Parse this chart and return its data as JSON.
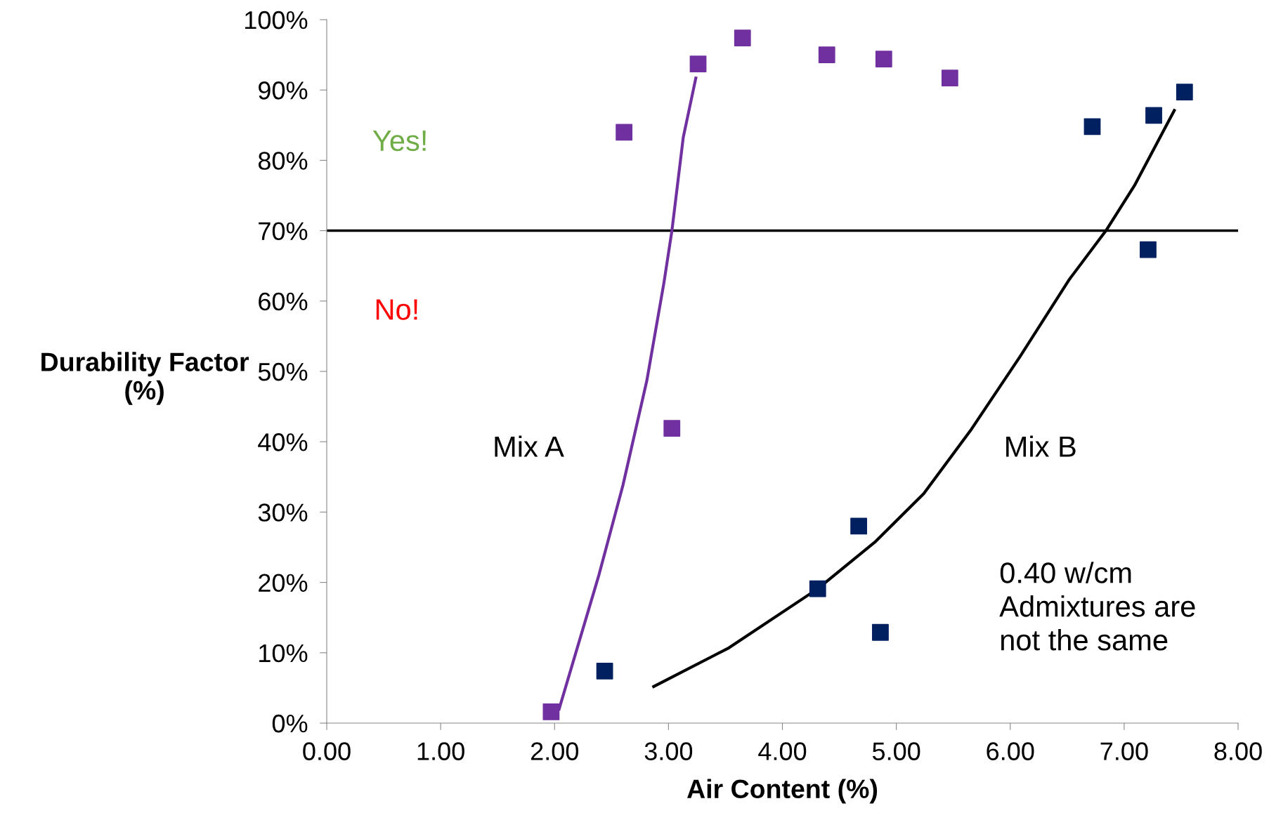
{
  "chart_data": {
    "type": "scatter",
    "xlabel": "Air Content (%)",
    "ylabel": "Durability Factor\n(%)",
    "marker": "square",
    "legend": false,
    "grid": false,
    "series": [
      {
        "color": "#7030a0",
        "x": [
          1.97,
          2.61,
          3.03,
          3.26,
          3.65,
          4.39,
          4.89,
          5.47
        ],
        "values": [
          1.6,
          84.0,
          41.9,
          93.7,
          97.4,
          95.0,
          94.4,
          91.7
        ]
      },
      {
        "color": "#002060",
        "x": [
          2.44,
          4.31,
          4.67,
          4.86,
          6.72,
          7.26,
          7.21,
          7.53
        ],
        "values": [
          7.4,
          19.1,
          28.0,
          12.9,
          84.8,
          86.4,
          67.3,
          89.7
        ]
      },
      {
        "type": "line",
        "marker": "none",
        "color": "#7030a0",
        "x": [
          2.04,
          2.39,
          2.6,
          2.81,
          2.96,
          3.03,
          3.13,
          3.24
        ],
        "values": [
          2.0,
          21.1,
          33.8,
          48.7,
          62.6,
          70.0,
          83.3,
          91.7
        ]
      },
      {
        "type": "line",
        "marker": "none",
        "color": "#000000",
        "x": [
          2.87,
          3.53,
          4.31,
          4.81,
          5.24,
          5.66,
          6.09,
          6.52,
          6.84,
          7.09,
          7.44
        ],
        "values": [
          5.2,
          10.7,
          19.1,
          25.7,
          32.6,
          41.8,
          52.2,
          63.1,
          70.0,
          76.4,
          87.1
        ]
      }
    ],
    "ref_lines": [
      {
        "axis": "y",
        "value": 70,
        "color": "#000000"
      }
    ],
    "annotations": [
      "Yes!",
      "No!",
      "Mix A",
      "Mix B",
      "0.40 w/cm\nAdmixtures are\nnot the same"
    ],
    "xlim": [
      0,
      8
    ],
    "ylim": [
      0,
      100
    ],
    "xticks": [
      {
        "value": 0,
        "label": "0.00"
      },
      {
        "value": 1,
        "label": "1.00"
      },
      {
        "value": 2,
        "label": "2.00"
      },
      {
        "value": 3,
        "label": "3.00"
      },
      {
        "value": 4,
        "label": "4.00"
      },
      {
        "value": 5,
        "label": "5.00"
      },
      {
        "value": 6,
        "label": "6.00"
      },
      {
        "value": 7,
        "label": "7.00"
      },
      {
        "value": 8,
        "label": "8.00"
      }
    ],
    "yticks": [
      {
        "value": 0,
        "label": "0%"
      },
      {
        "value": 10,
        "label": "10%"
      },
      {
        "value": 20,
        "label": "20%"
      },
      {
        "value": 30,
        "label": "30%"
      },
      {
        "value": 40,
        "label": "40%"
      },
      {
        "value": 50,
        "label": "50%"
      },
      {
        "value": 60,
        "label": "60%"
      },
      {
        "value": 70,
        "label": "70%"
      },
      {
        "value": 80,
        "label": "80%"
      },
      {
        "value": 90,
        "label": "90%"
      },
      {
        "value": 100,
        "label": "100%"
      }
    ]
  }
}
